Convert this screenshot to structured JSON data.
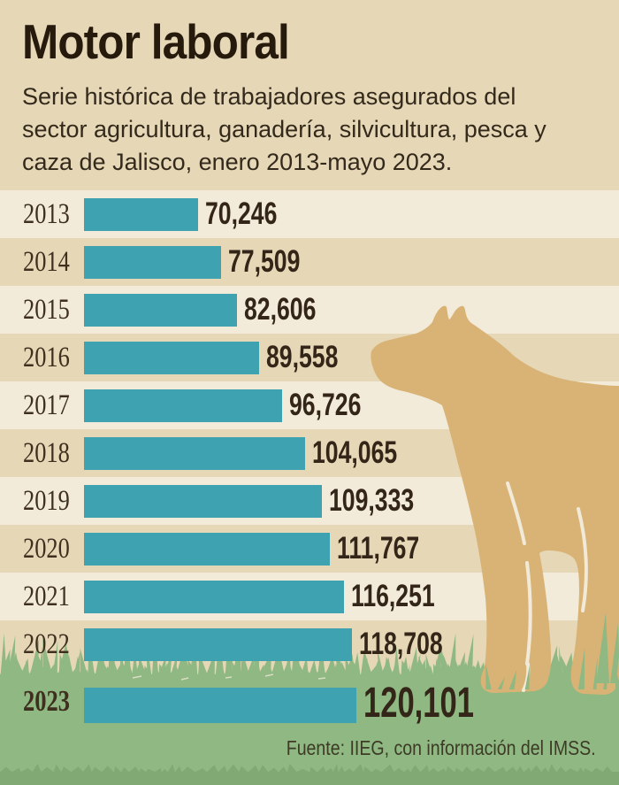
{
  "title": "Motor laboral",
  "subtitle_lines": [
    "Serie histórica de trabajadores asegurados del",
    "sector agricultura, ganadería, silvicultura, pesca y",
    "caza de Jalisco, enero 2013-mayo 2023."
  ],
  "source": "Fuente: IIEG, con información del IMSS.",
  "chart_data": {
    "type": "bar",
    "orientation": "horizontal",
    "title": "Motor laboral",
    "subtitle": "Serie histórica de trabajadores asegurados del sector agricultura, ganadería, silvicultura, pesca y caza de Jalisco, enero 2013-mayo 2023.",
    "categories": [
      "2013",
      "2014",
      "2015",
      "2016",
      "2017",
      "2018",
      "2019",
      "2020",
      "2021",
      "2022",
      "2023"
    ],
    "values": [
      70246,
      77509,
      82606,
      89558,
      96726,
      104065,
      109333,
      111767,
      116251,
      118708,
      120101
    ],
    "value_labels": [
      "70,246",
      "77,509",
      "82,606",
      "89,558",
      "96,726",
      "104,065",
      "109,333",
      "111,767",
      "116,251",
      "118,708",
      "120,101"
    ],
    "highlight_category": "2023",
    "legend": null,
    "grid": false
  },
  "illustrations": [
    "cow-silhouette",
    "grass"
  ],
  "colors": {
    "stripe_tan": "#e6d7b7",
    "stripe_light": "#f2ebda",
    "bar": "#3ea2b0",
    "cow": "#d9b375",
    "grass": "#8fb883",
    "grass_dark": "#80a973",
    "slit_cream": "#f2ead8",
    "title_text": "#261a0d",
    "subtitle_text": "#332a1c",
    "year_text": "#3e2f1f",
    "value_text": "#332517",
    "source_text": "#3d3b26"
  }
}
